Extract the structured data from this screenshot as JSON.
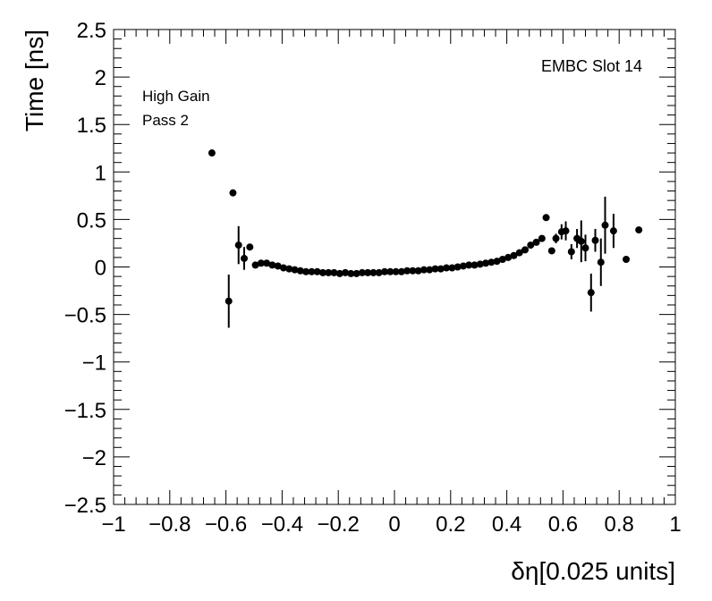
{
  "chart_data": {
    "type": "scatter",
    "title": "",
    "xlabel": "δη[0.025 units]",
    "ylabel": "Time [ns]",
    "xlim": [
      -1,
      1
    ],
    "ylim": [
      -2.5,
      2.5
    ],
    "x_ticks": [
      "−1",
      "−0.8",
      "−0.6",
      "−0.4",
      "−0.2",
      "0",
      "0.2",
      "0.4",
      "0.6",
      "0.8",
      "1"
    ],
    "y_ticks": [
      "2.5",
      "2",
      "1.5",
      "1",
      "0.5",
      "0",
      "−0.5",
      "−1",
      "−1.5",
      "−2",
      "−2.5"
    ],
    "grid": false,
    "annotations": [
      "High Gain",
      "Pass 2",
      "EMBC Slot 14"
    ],
    "series": [
      {
        "points": [
          {
            "x": -0.65,
            "y": 1.2,
            "err": 0.0
          },
          {
            "x": -0.59,
            "y": -0.36,
            "err": 0.28
          },
          {
            "x": -0.575,
            "y": 0.78,
            "err": 0.0
          },
          {
            "x": -0.555,
            "y": 0.23,
            "err": 0.2
          },
          {
            "x": -0.535,
            "y": 0.09,
            "err": 0.12
          },
          {
            "x": -0.515,
            "y": 0.21,
            "err": 0.0
          },
          {
            "x": -0.495,
            "y": 0.02,
            "err": 0.0
          },
          {
            "x": -0.475,
            "y": 0.04,
            "err": 0.0
          },
          {
            "x": -0.455,
            "y": 0.04,
            "err": 0.0
          },
          {
            "x": -0.435,
            "y": 0.02,
            "err": 0.0
          },
          {
            "x": -0.415,
            "y": 0.01,
            "err": 0.0
          },
          {
            "x": -0.395,
            "y": -0.01,
            "err": 0.0
          },
          {
            "x": -0.375,
            "y": -0.02,
            "err": 0.0
          },
          {
            "x": -0.355,
            "y": -0.03,
            "err": 0.0
          },
          {
            "x": -0.335,
            "y": -0.04,
            "err": 0.0
          },
          {
            "x": -0.315,
            "y": -0.05,
            "err": 0.0
          },
          {
            "x": -0.295,
            "y": -0.05,
            "err": 0.0
          },
          {
            "x": -0.275,
            "y": -0.05,
            "err": 0.0
          },
          {
            "x": -0.255,
            "y": -0.06,
            "err": 0.0
          },
          {
            "x": -0.235,
            "y": -0.06,
            "err": 0.0
          },
          {
            "x": -0.215,
            "y": -0.06,
            "err": 0.0
          },
          {
            "x": -0.195,
            "y": -0.07,
            "err": 0.0
          },
          {
            "x": -0.175,
            "y": -0.06,
            "err": 0.0
          },
          {
            "x": -0.155,
            "y": -0.07,
            "err": 0.0
          },
          {
            "x": -0.135,
            "y": -0.07,
            "err": 0.0
          },
          {
            "x": -0.115,
            "y": -0.06,
            "err": 0.0
          },
          {
            "x": -0.095,
            "y": -0.06,
            "err": 0.0
          },
          {
            "x": -0.075,
            "y": -0.06,
            "err": 0.0
          },
          {
            "x": -0.055,
            "y": -0.06,
            "err": 0.0
          },
          {
            "x": -0.035,
            "y": -0.05,
            "err": 0.0
          },
          {
            "x": -0.015,
            "y": -0.05,
            "err": 0.0
          },
          {
            "x": 0.005,
            "y": -0.05,
            "err": 0.0
          },
          {
            "x": 0.025,
            "y": -0.05,
            "err": 0.0
          },
          {
            "x": 0.045,
            "y": -0.04,
            "err": 0.0
          },
          {
            "x": 0.065,
            "y": -0.04,
            "err": 0.0
          },
          {
            "x": 0.085,
            "y": -0.04,
            "err": 0.0
          },
          {
            "x": 0.105,
            "y": -0.03,
            "err": 0.0
          },
          {
            "x": 0.125,
            "y": -0.03,
            "err": 0.0
          },
          {
            "x": 0.145,
            "y": -0.02,
            "err": 0.0
          },
          {
            "x": 0.165,
            "y": -0.02,
            "err": 0.0
          },
          {
            "x": 0.185,
            "y": -0.01,
            "err": 0.0
          },
          {
            "x": 0.205,
            "y": -0.01,
            "err": 0.0
          },
          {
            "x": 0.225,
            "y": 0.0,
            "err": 0.0
          },
          {
            "x": 0.245,
            "y": 0.01,
            "err": 0.0
          },
          {
            "x": 0.265,
            "y": 0.02,
            "err": 0.0
          },
          {
            "x": 0.285,
            "y": 0.02,
            "err": 0.0
          },
          {
            "x": 0.305,
            "y": 0.03,
            "err": 0.0
          },
          {
            "x": 0.325,
            "y": 0.04,
            "err": 0.0
          },
          {
            "x": 0.345,
            "y": 0.05,
            "err": 0.0
          },
          {
            "x": 0.365,
            "y": 0.06,
            "err": 0.0
          },
          {
            "x": 0.385,
            "y": 0.08,
            "err": 0.0
          },
          {
            "x": 0.405,
            "y": 0.1,
            "err": 0.0
          },
          {
            "x": 0.425,
            "y": 0.12,
            "err": 0.0
          },
          {
            "x": 0.445,
            "y": 0.15,
            "err": 0.0
          },
          {
            "x": 0.465,
            "y": 0.18,
            "err": 0.0
          },
          {
            "x": 0.485,
            "y": 0.23,
            "err": 0.0
          },
          {
            "x": 0.505,
            "y": 0.26,
            "err": 0.0
          },
          {
            "x": 0.525,
            "y": 0.3,
            "err": 0.0
          },
          {
            "x": 0.54,
            "y": 0.52,
            "err": 0.0
          },
          {
            "x": 0.56,
            "y": 0.17,
            "err": 0.0
          },
          {
            "x": 0.575,
            "y": 0.3,
            "err": 0.05
          },
          {
            "x": 0.595,
            "y": 0.37,
            "err": 0.08
          },
          {
            "x": 0.61,
            "y": 0.38,
            "err": 0.1
          },
          {
            "x": 0.63,
            "y": 0.16,
            "err": 0.08
          },
          {
            "x": 0.65,
            "y": 0.3,
            "err": 0.1
          },
          {
            "x": 0.665,
            "y": 0.27,
            "err": 0.22
          },
          {
            "x": 0.68,
            "y": 0.2,
            "err": 0.14
          },
          {
            "x": 0.7,
            "y": -0.27,
            "err": 0.2
          },
          {
            "x": 0.715,
            "y": 0.28,
            "err": 0.12
          },
          {
            "x": 0.735,
            "y": 0.05,
            "err": 0.25
          },
          {
            "x": 0.75,
            "y": 0.44,
            "err": 0.3
          },
          {
            "x": 0.78,
            "y": 0.38,
            "err": 0.18
          },
          {
            "x": 0.825,
            "y": 0.08,
            "err": 0.0
          },
          {
            "x": 0.87,
            "y": 0.39,
            "err": 0.0
          }
        ]
      }
    ]
  }
}
